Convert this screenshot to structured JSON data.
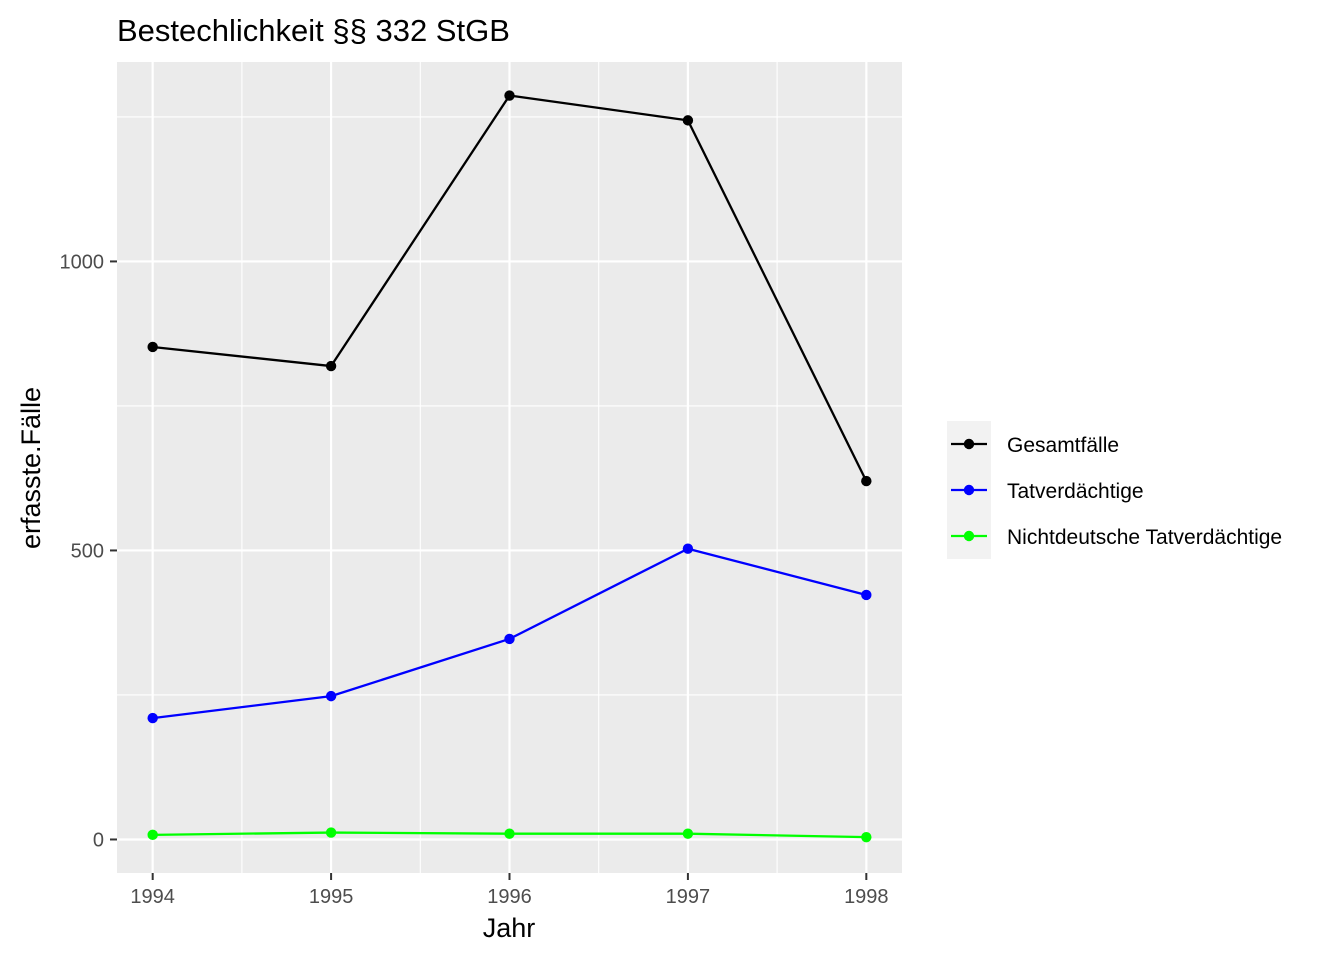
{
  "chart_data": {
    "type": "line",
    "title": "Bestechlichkeit §§ 332 StGB",
    "xlabel": "Jahr",
    "ylabel": "erfasste.Fälle",
    "x": [
      1994,
      1995,
      1996,
      1997,
      1998
    ],
    "x_ticks": [
      "1994",
      "1995",
      "1996",
      "1997",
      "1998"
    ],
    "y_ticks": [
      "0",
      "500",
      "1000"
    ],
    "y_tick_values": [
      0,
      500,
      1000
    ],
    "xlim": [
      1993.8,
      1998.2
    ],
    "ylim": [
      -58,
      1345
    ],
    "grid": true,
    "legend_position": "right",
    "series": [
      {
        "name": "Gesamtfälle",
        "color": "#000000",
        "values": [
          852,
          819,
          1287,
          1244,
          620
        ]
      },
      {
        "name": "Tatverdächtige",
        "color": "#0000ff",
        "values": [
          210,
          248,
          347,
          503,
          423
        ]
      },
      {
        "name": "Nichtdeutsche Tatverdächtige",
        "color": "#00ff00",
        "values": [
          8,
          12,
          10,
          10,
          4
        ]
      }
    ]
  }
}
